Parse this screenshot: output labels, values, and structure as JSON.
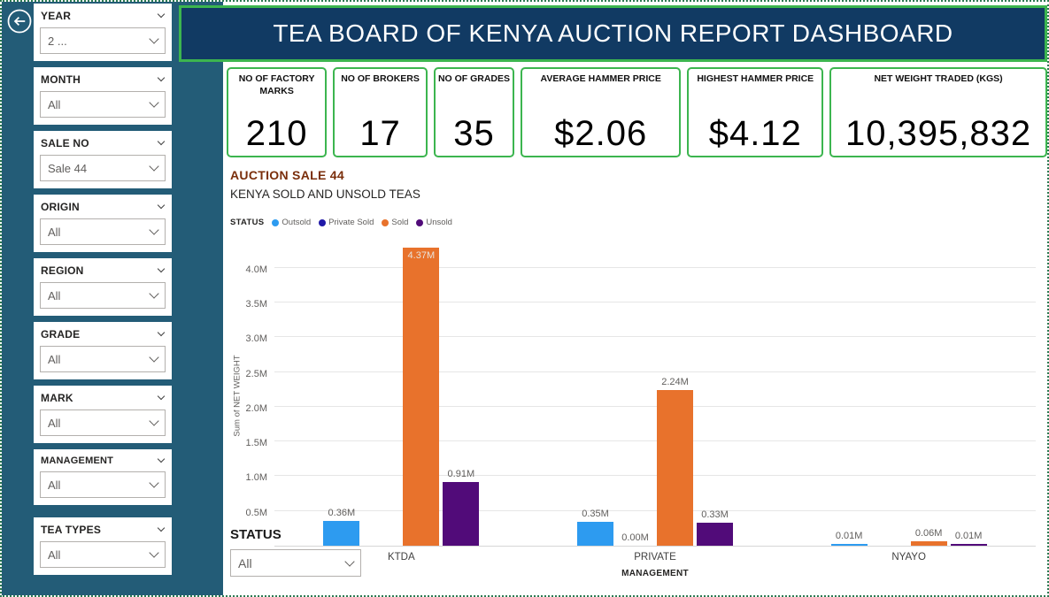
{
  "header": {
    "title": "TEA BOARD OF KENYA AUCTION REPORT DASHBOARD"
  },
  "sidebar": {
    "filters": [
      {
        "label": "YEAR",
        "value": "2 ..."
      },
      {
        "label": "MONTH",
        "value": "All"
      },
      {
        "label": "SALE NO",
        "value": "Sale 44"
      },
      {
        "label": "ORIGIN",
        "value": "All"
      },
      {
        "label": "REGION",
        "value": "All"
      },
      {
        "label": "GRADE",
        "value": "All"
      },
      {
        "label": "MARK",
        "value": "All"
      },
      {
        "label": "MANAGEMENT",
        "value": "All"
      },
      {
        "label": "TEA TYPES",
        "value": "All"
      }
    ]
  },
  "kpis": [
    {
      "label": "NO OF FACTORY MARKS",
      "value": "210"
    },
    {
      "label": "NO OF BROKERS",
      "value": "17"
    },
    {
      "label": "NO OF GRADES",
      "value": "35"
    },
    {
      "label": "AVERAGE HAMMER PRICE",
      "value": "$2.06"
    },
    {
      "label": "HIGHEST HAMMER PRICE",
      "value": "$4.12"
    },
    {
      "label": "NET WEIGHT TRADED (KGS)",
      "value": "10,395,832"
    }
  ],
  "status_filter": {
    "label": "STATUS",
    "value": "All"
  },
  "chart_data": {
    "type": "bar",
    "title": "AUCTION SALE 44",
    "subtitle": "KENYA SOLD AND UNSOLD TEAS",
    "legend_title": "STATUS",
    "xlabel": "MANAGEMENT",
    "ylabel": "Sum of NET WEIGHT",
    "categories": [
      "KTDA",
      "PRIVATE",
      "NYAYO"
    ],
    "series": [
      {
        "name": "Outsold",
        "color": "#2d9bf0",
        "values": [
          0.36,
          0.35,
          0.01
        ]
      },
      {
        "name": "Private Sold",
        "color": "#2019a8",
        "values": [
          null,
          0.0,
          null
        ]
      },
      {
        "name": "Sold",
        "color": "#e8722c",
        "values": [
          4.37,
          2.24,
          0.06
        ]
      },
      {
        "name": "Unsold",
        "color": "#510b79",
        "values": [
          0.91,
          0.33,
          0.01
        ]
      }
    ],
    "unit": "M",
    "ylim": [
      0,
      4.3
    ],
    "y_ticks": [
      "4.0M",
      "3.5M",
      "3.0M",
      "2.5M",
      "2.0M",
      "1.5M",
      "1.0M",
      "0.5M"
    ],
    "data_labels": true,
    "grid": true,
    "legend_position": "top"
  },
  "colors": {
    "sidebar_bg": "#235c77",
    "header_bg": "#113a63",
    "accent_green": "#3cb54f",
    "chart_title": "#7a2e0b"
  }
}
